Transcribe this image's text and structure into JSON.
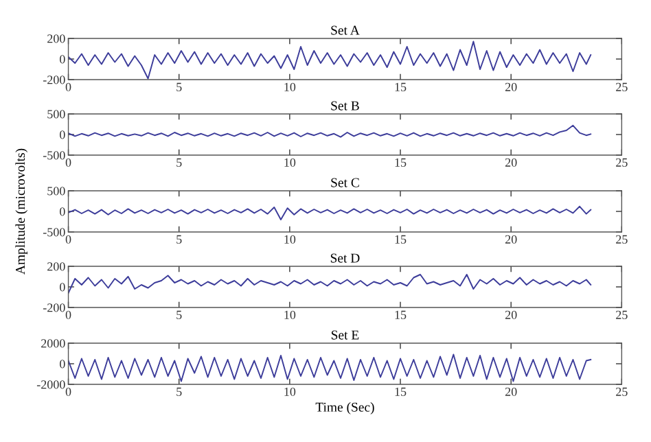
{
  "chart_data": [
    {
      "type": "line",
      "title": "Set A",
      "color": "#3c3c9a",
      "xlim": [
        0,
        25
      ],
      "xticks": [
        0,
        5,
        10,
        15,
        20,
        25
      ],
      "ylim": [
        -200,
        200
      ],
      "yticks": [
        {
          "value": -200,
          "label": "-200"
        },
        0,
        200
      ],
      "grid": false,
      "x": [
        0,
        0.3,
        0.6,
        0.9,
        1.2,
        1.5,
        1.8,
        2.1,
        2.4,
        2.7,
        3,
        3.3,
        3.6,
        3.9,
        4.2,
        4.5,
        4.8,
        5.1,
        5.4,
        5.7,
        6,
        6.3,
        6.6,
        6.9,
        7.2,
        7.5,
        7.8,
        8.1,
        8.4,
        8.7,
        9,
        9.3,
        9.6,
        9.9,
        10.2,
        10.5,
        10.8,
        11.1,
        11.4,
        11.7,
        12,
        12.3,
        12.6,
        12.9,
        13.2,
        13.5,
        13.8,
        14.1,
        14.4,
        14.7,
        15,
        15.3,
        15.6,
        15.9,
        16.2,
        16.5,
        16.8,
        17.1,
        17.4,
        17.7,
        18,
        18.3,
        18.6,
        18.9,
        19.2,
        19.5,
        19.8,
        20.1,
        20.4,
        20.7,
        21,
        21.3,
        21.6,
        21.9,
        22.2,
        22.5,
        22.8,
        23.1,
        23.4,
        23.6
      ],
      "values": [
        20,
        -40,
        50,
        -60,
        40,
        -50,
        60,
        -30,
        50,
        -70,
        30,
        -60,
        -190,
        40,
        -50,
        60,
        -40,
        80,
        -30,
        70,
        -50,
        60,
        -40,
        50,
        -60,
        40,
        -50,
        60,
        -70,
        50,
        -40,
        30,
        -90,
        40,
        -100,
        120,
        -60,
        80,
        -40,
        60,
        -50,
        40,
        -70,
        50,
        -30,
        60,
        -60,
        40,
        -80,
        70,
        -50,
        120,
        -60,
        50,
        -40,
        60,
        -70,
        50,
        -110,
        90,
        -60,
        170,
        -100,
        80,
        -110,
        70,
        -80,
        40,
        -60,
        50,
        -40,
        90,
        -50,
        60,
        -40,
        50,
        -120,
        60,
        -50,
        40
      ]
    },
    {
      "type": "line",
      "title": "Set B",
      "color": "#3c3c9a",
      "xlim": [
        0,
        25
      ],
      "xticks": [
        0,
        5,
        10,
        15,
        20,
        25
      ],
      "ylim": [
        -500,
        500
      ],
      "yticks": [
        {
          "value": -500,
          "label": "-500"
        },
        0,
        500
      ],
      "grid": false,
      "x": [
        0,
        0.3,
        0.6,
        0.9,
        1.2,
        1.5,
        1.8,
        2.1,
        2.4,
        2.7,
        3,
        3.3,
        3.6,
        3.9,
        4.2,
        4.5,
        4.8,
        5.1,
        5.4,
        5.7,
        6,
        6.3,
        6.6,
        6.9,
        7.2,
        7.5,
        7.8,
        8.1,
        8.4,
        8.7,
        9,
        9.3,
        9.6,
        9.9,
        10.2,
        10.5,
        10.8,
        11.1,
        11.4,
        11.7,
        12,
        12.3,
        12.6,
        12.9,
        13.2,
        13.5,
        13.8,
        14.1,
        14.4,
        14.7,
        15,
        15.3,
        15.6,
        15.9,
        16.2,
        16.5,
        16.8,
        17.1,
        17.4,
        17.7,
        18,
        18.3,
        18.6,
        18.9,
        19.2,
        19.5,
        19.8,
        20.1,
        20.4,
        20.7,
        21,
        21.3,
        21.6,
        21.9,
        22.2,
        22.5,
        22.8,
        23.1,
        23.4,
        23.6
      ],
      "values": [
        30,
        -40,
        20,
        -30,
        40,
        -20,
        30,
        -40,
        20,
        -30,
        10,
        -30,
        40,
        -20,
        30,
        -40,
        50,
        -20,
        30,
        -30,
        20,
        -40,
        30,
        -30,
        20,
        -40,
        30,
        -20,
        40,
        -30,
        50,
        -40,
        30,
        -30,
        40,
        -50,
        30,
        -20,
        40,
        -30,
        20,
        -60,
        50,
        -40,
        30,
        -20,
        40,
        -30,
        20,
        -40,
        30,
        -30,
        40,
        -40,
        20,
        -30,
        30,
        -20,
        40,
        -30,
        20,
        -30,
        30,
        -20,
        40,
        -30,
        20,
        -30,
        40,
        -20,
        30,
        -30,
        40,
        -20,
        60,
        100,
        220,
        40,
        -20,
        10
      ]
    },
    {
      "type": "line",
      "title": "Set C",
      "ylabel": "Amplitude (microvolts)",
      "color": "#3c3c9a",
      "xlim": [
        0,
        25
      ],
      "xticks": [
        0,
        5,
        10,
        15,
        20,
        25
      ],
      "ylim": [
        -500,
        500
      ],
      "yticks": [
        {
          "value": -500,
          "label": "-500"
        },
        0,
        500
      ],
      "grid": false,
      "x": [
        0,
        0.3,
        0.6,
        0.9,
        1.2,
        1.5,
        1.8,
        2.1,
        2.4,
        2.7,
        3,
        3.3,
        3.6,
        3.9,
        4.2,
        4.5,
        4.8,
        5.1,
        5.4,
        5.7,
        6,
        6.3,
        6.6,
        6.9,
        7.2,
        7.5,
        7.8,
        8.1,
        8.4,
        8.7,
        9,
        9.3,
        9.6,
        9.9,
        10.2,
        10.5,
        10.8,
        11.1,
        11.4,
        11.7,
        12,
        12.3,
        12.6,
        12.9,
        13.2,
        13.5,
        13.8,
        14.1,
        14.4,
        14.7,
        15,
        15.3,
        15.6,
        15.9,
        16.2,
        16.5,
        16.8,
        17.1,
        17.4,
        17.7,
        18,
        18.3,
        18.6,
        18.9,
        19.2,
        19.5,
        19.8,
        20.1,
        20.4,
        20.7,
        21,
        21.3,
        21.6,
        21.9,
        22.2,
        22.5,
        22.8,
        23.1,
        23.4,
        23.6
      ],
      "values": [
        -30,
        40,
        -50,
        30,
        -60,
        40,
        -80,
        30,
        -50,
        60,
        -40,
        30,
        -50,
        40,
        -30,
        50,
        -40,
        30,
        -60,
        40,
        -30,
        50,
        -40,
        30,
        -50,
        40,
        -30,
        60,
        -40,
        50,
        -60,
        100,
        -200,
        80,
        -80,
        60,
        -40,
        50,
        -30,
        40,
        -50,
        30,
        -40,
        60,
        -30,
        50,
        -40,
        30,
        -50,
        40,
        -30,
        50,
        -60,
        30,
        -40,
        50,
        -30,
        40,
        -50,
        30,
        -40,
        50,
        -30,
        40,
        -60,
        30,
        -40,
        50,
        -30,
        40,
        -50,
        30,
        -40,
        60,
        -30,
        50,
        -40,
        120,
        -60,
        40
      ]
    },
    {
      "type": "line",
      "title": "Set D",
      "color": "#3c3c9a",
      "xlim": [
        0,
        25
      ],
      "xticks": [
        0,
        5,
        10,
        15,
        20,
        25
      ],
      "ylim": [
        -200,
        200
      ],
      "yticks": [
        {
          "value": -200,
          "label": "-200"
        },
        0,
        200
      ],
      "grid": false,
      "x": [
        0,
        0.3,
        0.6,
        0.9,
        1.2,
        1.5,
        1.8,
        2.1,
        2.4,
        2.7,
        3,
        3.3,
        3.6,
        3.9,
        4.2,
        4.5,
        4.8,
        5.1,
        5.4,
        5.7,
        6,
        6.3,
        6.6,
        6.9,
        7.2,
        7.5,
        7.8,
        8.1,
        8.4,
        8.7,
        9,
        9.3,
        9.6,
        9.9,
        10.2,
        10.5,
        10.8,
        11.1,
        11.4,
        11.7,
        12,
        12.3,
        12.6,
        12.9,
        13.2,
        13.5,
        13.8,
        14.1,
        14.4,
        14.7,
        15,
        15.3,
        15.6,
        15.9,
        16.2,
        16.5,
        16.8,
        17.1,
        17.4,
        17.7,
        18,
        18.3,
        18.6,
        18.9,
        19.2,
        19.5,
        19.8,
        20.1,
        20.4,
        20.7,
        21,
        21.3,
        21.6,
        21.9,
        22.2,
        22.5,
        22.8,
        23.1,
        23.4,
        23.6
      ],
      "values": [
        -60,
        80,
        20,
        90,
        10,
        70,
        -10,
        80,
        30,
        100,
        -20,
        20,
        -10,
        40,
        60,
        110,
        40,
        70,
        30,
        60,
        10,
        50,
        20,
        70,
        30,
        60,
        10,
        80,
        20,
        60,
        40,
        20,
        50,
        10,
        60,
        30,
        70,
        20,
        50,
        10,
        60,
        30,
        70,
        20,
        60,
        10,
        50,
        30,
        70,
        20,
        40,
        10,
        90,
        120,
        30,
        50,
        20,
        40,
        60,
        10,
        120,
        -20,
        70,
        30,
        80,
        20,
        60,
        30,
        90,
        20,
        70,
        30,
        60,
        20,
        50,
        10,
        60,
        30,
        70,
        20
      ]
    },
    {
      "type": "line",
      "title": "Set E",
      "xlabel": "Time (Sec)",
      "color": "#3c3c9a",
      "xlim": [
        0,
        25
      ],
      "xticks": [
        0,
        5,
        10,
        15,
        20,
        25
      ],
      "ylim": [
        -2000,
        2000
      ],
      "yticks": [
        {
          "value": -2000,
          "label": "-2000"
        },
        0,
        2000
      ],
      "grid": false,
      "x": [
        0,
        0.3,
        0.6,
        0.9,
        1.2,
        1.5,
        1.8,
        2.1,
        2.4,
        2.7,
        3,
        3.3,
        3.6,
        3.9,
        4.2,
        4.5,
        4.8,
        5.1,
        5.4,
        5.7,
        6,
        6.3,
        6.6,
        6.9,
        7.2,
        7.5,
        7.8,
        8.1,
        8.4,
        8.7,
        9,
        9.3,
        9.6,
        9.9,
        10.2,
        10.5,
        10.8,
        11.1,
        11.4,
        11.7,
        12,
        12.3,
        12.6,
        12.9,
        13.2,
        13.5,
        13.8,
        14.1,
        14.4,
        14.7,
        15,
        15.3,
        15.6,
        15.9,
        16.2,
        16.5,
        16.8,
        17.1,
        17.4,
        17.7,
        18,
        18.3,
        18.6,
        18.9,
        19.2,
        19.5,
        19.8,
        20.1,
        20.4,
        20.7,
        21,
        21.3,
        21.6,
        21.9,
        22.2,
        22.5,
        22.8,
        23.1,
        23.4,
        23.6
      ],
      "values": [
        300,
        -1400,
        500,
        -1200,
        400,
        -1500,
        600,
        -1300,
        300,
        -1400,
        500,
        -1100,
        400,
        -1300,
        600,
        -1200,
        300,
        -1700,
        500,
        -900,
        700,
        -1300,
        600,
        -1200,
        400,
        -1500,
        500,
        -1200,
        300,
        -1400,
        600,
        -1300,
        800,
        -1500,
        500,
        -1200,
        400,
        -1300,
        600,
        -1100,
        300,
        -1400,
        500,
        -1600,
        400,
        -1200,
        600,
        -1300,
        300,
        -1500,
        500,
        -1200,
        400,
        -1400,
        300,
        -1300,
        700,
        -1100,
        900,
        -1400,
        600,
        -1200,
        800,
        -1500,
        600,
        -1300,
        500,
        -1700,
        600,
        -1200,
        400,
        -1300,
        500,
        -1400,
        600,
        -1200,
        400,
        -1500,
        300,
        400
      ]
    }
  ]
}
